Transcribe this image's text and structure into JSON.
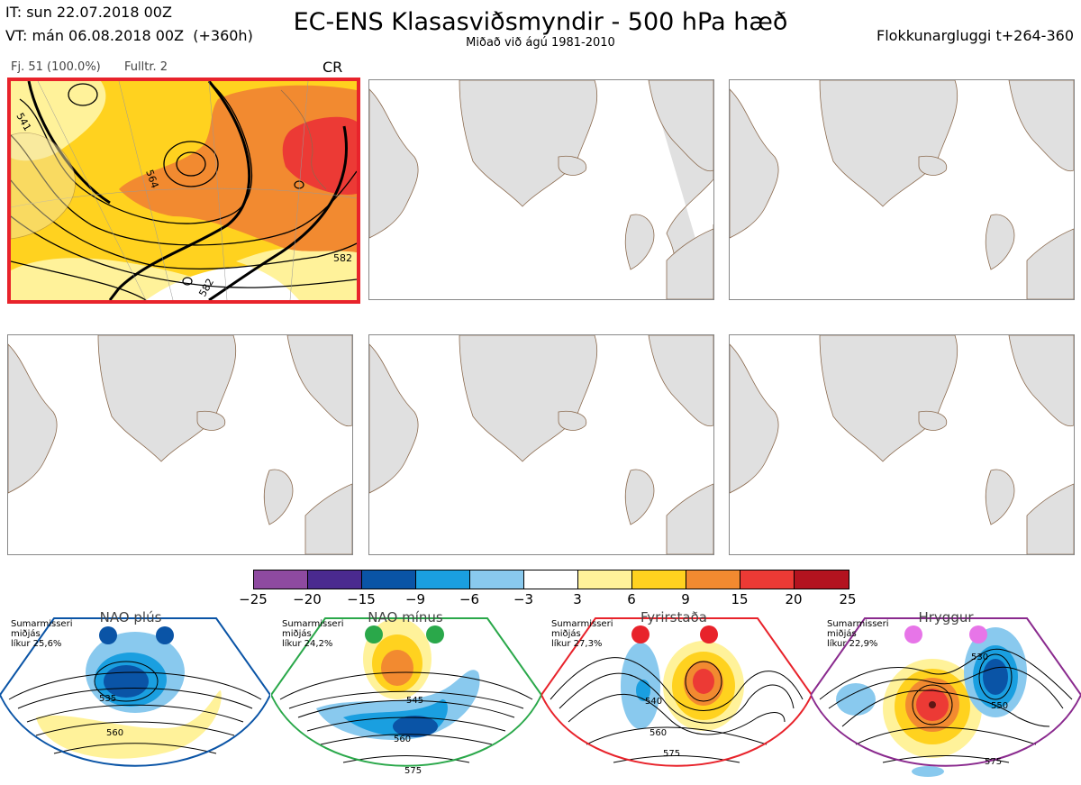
{
  "header": {
    "it_line": "IT: sun 22.07.2018 00Z",
    "vt_line": "VT: mán 06.08.2018 00Z  (+360h)",
    "title": "EC-ENS Klasasviðsmyndir - 500 hPa hæð",
    "subtitle": "Miðað við ágú 1981-2010",
    "window": "Flokkunargluggi t+264-360"
  },
  "cluster": {
    "members": "Fj. 51 (100.0%)",
    "representative": "Fulltr. 2",
    "regime_code": "CR",
    "contour_labels": [
      "541",
      "564",
      "582",
      "582"
    ]
  },
  "colors": {
    "selected_border": "#e8232b",
    "land": "#e0e0e0",
    "coast": "#8b6a4e",
    "contour": "#000000"
  },
  "colorbar": {
    "ticks": [
      "−25",
      "−20",
      "−15",
      "−9",
      "−6",
      "−3",
      "3",
      "6",
      "9",
      "15",
      "20",
      "25"
    ],
    "colors": [
      "#8e4aa0",
      "#4a2a8f",
      "#0a54a6",
      "#1a9fe0",
      "#89c9ee",
      "#ffffff",
      "#fff29a",
      "#ffd21f",
      "#f28a30",
      "#ec3a35",
      "#b3131f"
    ]
  },
  "regimes": [
    {
      "name": "NAO plús",
      "note": "Sumarmisseri\nmiðjás\nlíkur 25,6%",
      "color": "#0a54a6",
      "dot": "#0a54a6",
      "labels": [
        "535",
        "560"
      ]
    },
    {
      "name": "NAO mínus",
      "note": "Sumarmisseri\nmiðjás\nlíkur 24,2%",
      "color": "#2aa84a",
      "dot": "#2aa84a",
      "labels": [
        "545",
        "560",
        "575"
      ]
    },
    {
      "name": "Fyrirstaða",
      "note": "Sumarmisseri\nmiðjás\nlíkur 27,3%",
      "color": "#e8232b",
      "dot": "#e8232b",
      "labels": [
        "540",
        "560",
        "575"
      ]
    },
    {
      "name": "Hryggur",
      "note": "Sumarmisseri\nmiðjás\nlíkur 22,9%",
      "color": "#8a2a8e",
      "dot": "#e775e8",
      "labels": [
        "530",
        "550",
        "575"
      ]
    }
  ]
}
